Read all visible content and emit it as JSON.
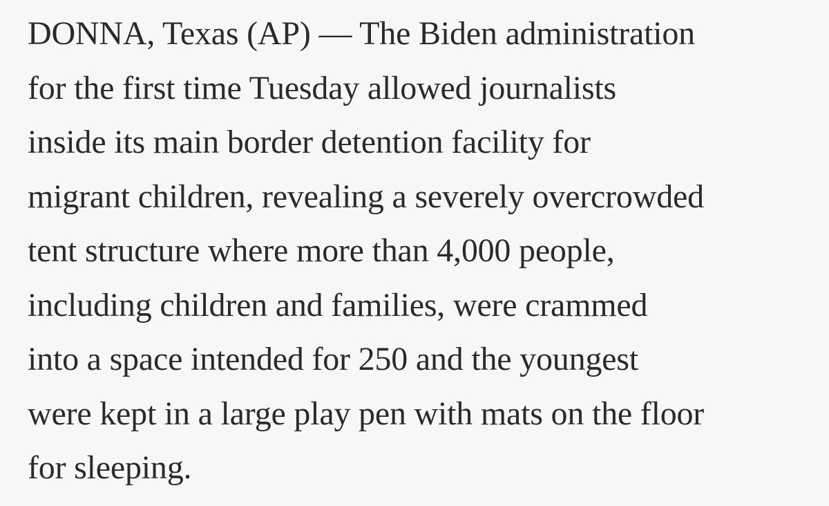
{
  "article": {
    "lines": [
      "DONNA, Texas (AP) — The Biden administration",
      "for the first time Tuesday allowed journalists",
      "inside its main border detention facility for",
      "migrant children, revealing a severely overcrowded",
      "tent structure where more than 4,000 people,",
      "including children and families, were crammed",
      "into a space intended for 250 and the youngest",
      "were kept in a large play pen with mats on the floor",
      "for sleeping."
    ]
  }
}
